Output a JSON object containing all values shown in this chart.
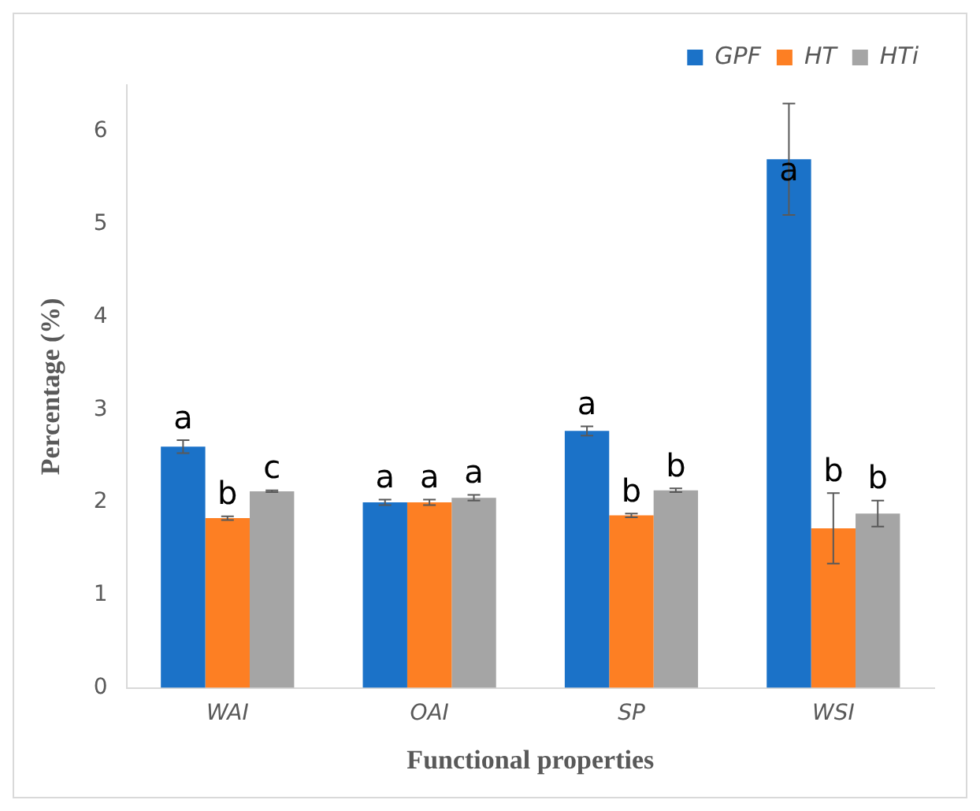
{
  "chart_data": {
    "type": "bar",
    "xlabel": "Functional properties",
    "ylabel": "Percentage (%)",
    "categories": [
      "WAI",
      "OAI",
      "SP",
      "WSI"
    ],
    "series": [
      {
        "name": "GPF",
        "color": "#1b72c8",
        "values": [
          2.6,
          2.0,
          2.77,
          5.7
        ],
        "errors": [
          0.07,
          0.03,
          0.05,
          0.6
        ],
        "value_labels": [
          "a",
          "a",
          "a",
          "a"
        ]
      },
      {
        "name": "HT",
        "color": "#fd7f23",
        "values": [
          1.83,
          2.0,
          1.86,
          1.72
        ],
        "errors": [
          0.02,
          0.03,
          0.02,
          0.38
        ],
        "value_labels": [
          "b",
          "a",
          "b",
          "b"
        ]
      },
      {
        "name": "HTi",
        "color": "#a5a5a5",
        "values": [
          2.12,
          2.05,
          2.13,
          1.88
        ],
        "errors": [
          0.01,
          0.03,
          0.02,
          0.14
        ],
        "value_labels": [
          "c",
          "a",
          "b",
          "b"
        ]
      }
    ],
    "ylim": [
      0,
      6.5
    ],
    "yticks": [
      0,
      1,
      2,
      3,
      4,
      5,
      6
    ],
    "grid": false,
    "legend": "top right"
  }
}
